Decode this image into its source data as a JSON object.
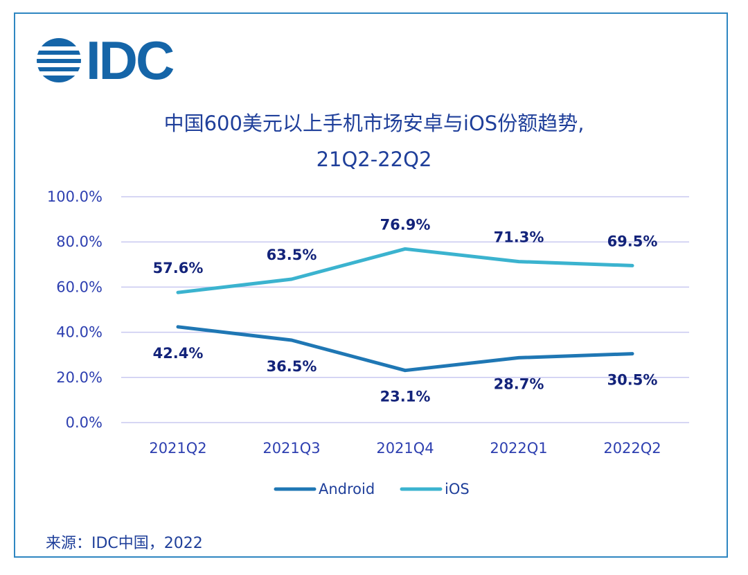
{
  "logo": {
    "text": "IDC"
  },
  "title_line1": "中国600美元以上手机市场安卓与iOS份额趋势,",
  "title_line2": "21Q2-22Q2",
  "source": "来源：IDC中国，2022",
  "colors": {
    "android": "#1f77b4",
    "ios": "#3bb3cf",
    "grid": "#c8c8f0",
    "text": "#1f3f9a"
  },
  "chart_data": {
    "type": "line",
    "categories": [
      "2021Q2",
      "2021Q3",
      "2021Q4",
      "2022Q1",
      "2022Q2"
    ],
    "ylim": [
      0,
      100
    ],
    "yticks": [
      "0.0%",
      "20.0%",
      "40.0%",
      "60.0%",
      "80.0%",
      "100.0%"
    ],
    "grid": true,
    "legend_position": "bottom",
    "series": [
      {
        "name": "Android",
        "values": [
          42.4,
          36.5,
          23.1,
          28.7,
          30.5
        ],
        "labels": [
          "42.4%",
          "36.5%",
          "23.1%",
          "28.7%",
          "30.5%"
        ],
        "color": "#1f77b4"
      },
      {
        "name": "iOS",
        "values": [
          57.6,
          63.5,
          76.9,
          71.3,
          69.5
        ],
        "labels": [
          "57.6%",
          "63.5%",
          "76.9%",
          "71.3%",
          "69.5%"
        ],
        "color": "#3bb3cf"
      }
    ]
  }
}
